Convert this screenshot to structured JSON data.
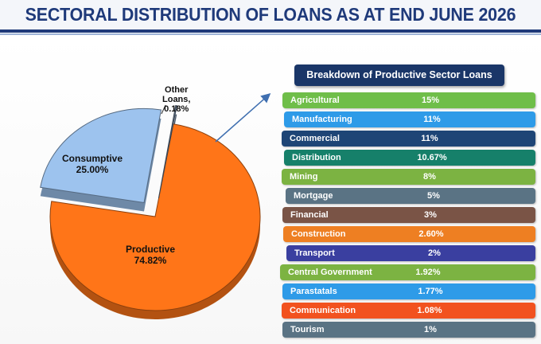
{
  "title": "SECTORAL DISTRIBUTION OF LOANS AS AT END JUNE 2026",
  "chart_data": [
    {
      "type": "pie",
      "slices": [
        {
          "label": "Productive",
          "value": 74.82,
          "display": "74.82%",
          "color": "#ff7518"
        },
        {
          "label": "Consumptive",
          "value": 25.0,
          "display": "25.00%",
          "color": "#9dc3ee"
        },
        {
          "label": "Other Loans,",
          "value": 0.18,
          "display": "0.18%",
          "color": "#6b7f99"
        }
      ]
    },
    {
      "type": "table",
      "title": "Breakdown of Productive Sector Loans",
      "rows": [
        {
          "label": "Agricultural",
          "value": "15%",
          "color": "#6fbe49"
        },
        {
          "label": "Manufacturing",
          "value": "11%",
          "color": "#2e9be8"
        },
        {
          "label": "Commercial",
          "value": "11%",
          "color": "#1e4576"
        },
        {
          "label": "Distribution",
          "value": "10.67%",
          "color": "#16806a"
        },
        {
          "label": "Mining",
          "value": "8%",
          "color": "#7cb342"
        },
        {
          "label": "Mortgage",
          "value": "5%",
          "color": "#5a7384"
        },
        {
          "label": "Financial",
          "value": "3%",
          "color": "#7a5446"
        },
        {
          "label": "Construction",
          "value": "2.60%",
          "color": "#ee7f22"
        },
        {
          "label": "Transport",
          "value": "2%",
          "color": "#3a3fa0"
        },
        {
          "label": "Central Government",
          "value": "1.92%",
          "color": "#7cb342"
        },
        {
          "label": "Parastatals",
          "value": "1.77%",
          "color": "#2e9be8"
        },
        {
          "label": "Communication",
          "value": "1.08%",
          "color": "#f2521f"
        },
        {
          "label": "Tourism",
          "value": "1%",
          "color": "#5a7384"
        }
      ]
    }
  ]
}
